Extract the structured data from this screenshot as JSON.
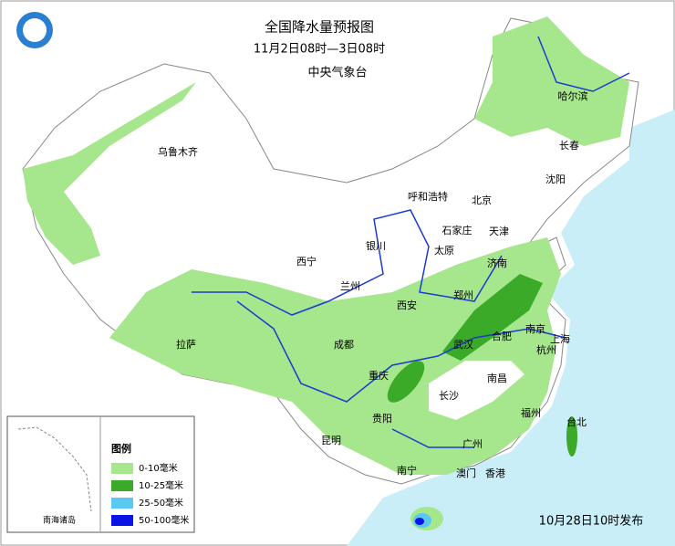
{
  "header": {
    "title": "全国降水量预报图",
    "period": "11月2日08时—3日08时",
    "issuer": "中央气象台"
  },
  "cities": [
    "乌鲁木齐",
    "哈尔滨",
    "长春",
    "沈阳",
    "呼和浩特",
    "北京",
    "石家庄",
    "天津",
    "银川",
    "太原",
    "济南",
    "西宁",
    "兰州",
    "郑州",
    "西安",
    "南京",
    "上海",
    "合肥",
    "武汉",
    "拉萨",
    "成都",
    "杭州",
    "重庆",
    "南昌",
    "长沙",
    "福州",
    "贵阳",
    "台北",
    "昆明",
    "广州",
    "南宁",
    "澳门",
    "香港"
  ],
  "legend": {
    "title": "图例",
    "items": [
      {
        "label": "0-10毫米",
        "color": "#a6e68c"
      },
      {
        "label": "10-25毫米",
        "color": "#3aaa28"
      },
      {
        "label": "25-50毫米",
        "color": "#5ac8f0"
      },
      {
        "label": "50-100毫米",
        "color": "#0a14e6"
      }
    ]
  },
  "inset": {
    "label": "南海诸岛"
  },
  "footer": {
    "published": "10月28日10时发布"
  }
}
